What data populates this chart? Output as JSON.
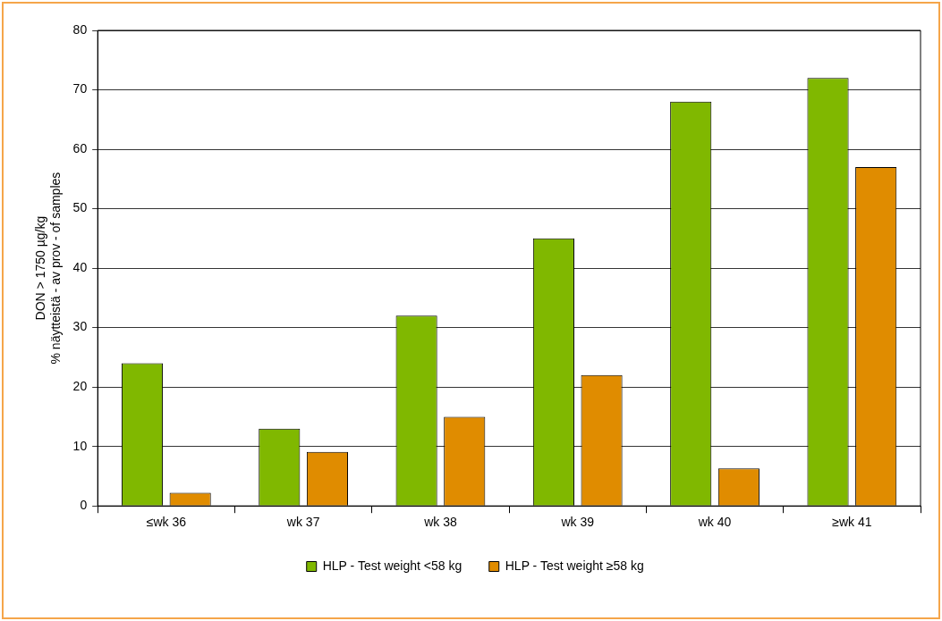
{
  "chart_data": {
    "type": "bar",
    "ylabel": "DON > 1750 µg/kg\n% näytteistä - av prov - of samples",
    "categories": [
      "≤wk 36",
      "wk 37",
      "wk 38",
      "wk 39",
      "wk 40",
      "≥wk 41"
    ],
    "series": [
      {
        "name": "HLP - Test weight <58 kg",
        "color": "#80b800",
        "values": [
          24,
          13,
          32,
          45,
          68,
          72
        ]
      },
      {
        "name": "HLP - Test weight ≥58 kg",
        "color": "#e08c00",
        "values": [
          2.2,
          9.1,
          15,
          22,
          6.3,
          57
        ]
      }
    ],
    "ylim": [
      0,
      80
    ],
    "yticks": [
      0,
      10,
      20,
      30,
      40,
      50,
      60,
      70,
      80
    ],
    "grid": "y",
    "legend": "bottom"
  }
}
